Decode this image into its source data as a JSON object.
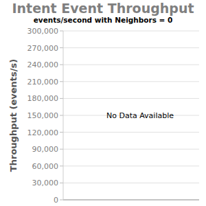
{
  "chart_data": {
    "type": "bar",
    "title": "Intent Event Throughput",
    "subtitle": "events/second with Neighbors = 0",
    "y_label": "Throughput (events/s)",
    "categories": [],
    "values": [],
    "annotations": [
      "No Data Available"
    ],
    "ylim": [
      0,
      300000
    ],
    "yticks": [
      0,
      {
        "value": 30000,
        "label": "30,000"
      },
      {
        "value": 60000,
        "label": "60,000"
      },
      {
        "value": 90000,
        "label": "90,000"
      },
      {
        "value": 120000,
        "label": "120,000"
      },
      {
        "value": 150000,
        "label": "150,000"
      },
      {
        "value": 180000,
        "label": "180,000"
      },
      {
        "value": 210000,
        "label": "210,000"
      },
      {
        "value": 240000,
        "label": "240,000"
      },
      {
        "value": 270000,
        "label": "270,000"
      },
      {
        "value": 300000,
        "label": "300,000"
      }
    ],
    "grid": true
  }
}
